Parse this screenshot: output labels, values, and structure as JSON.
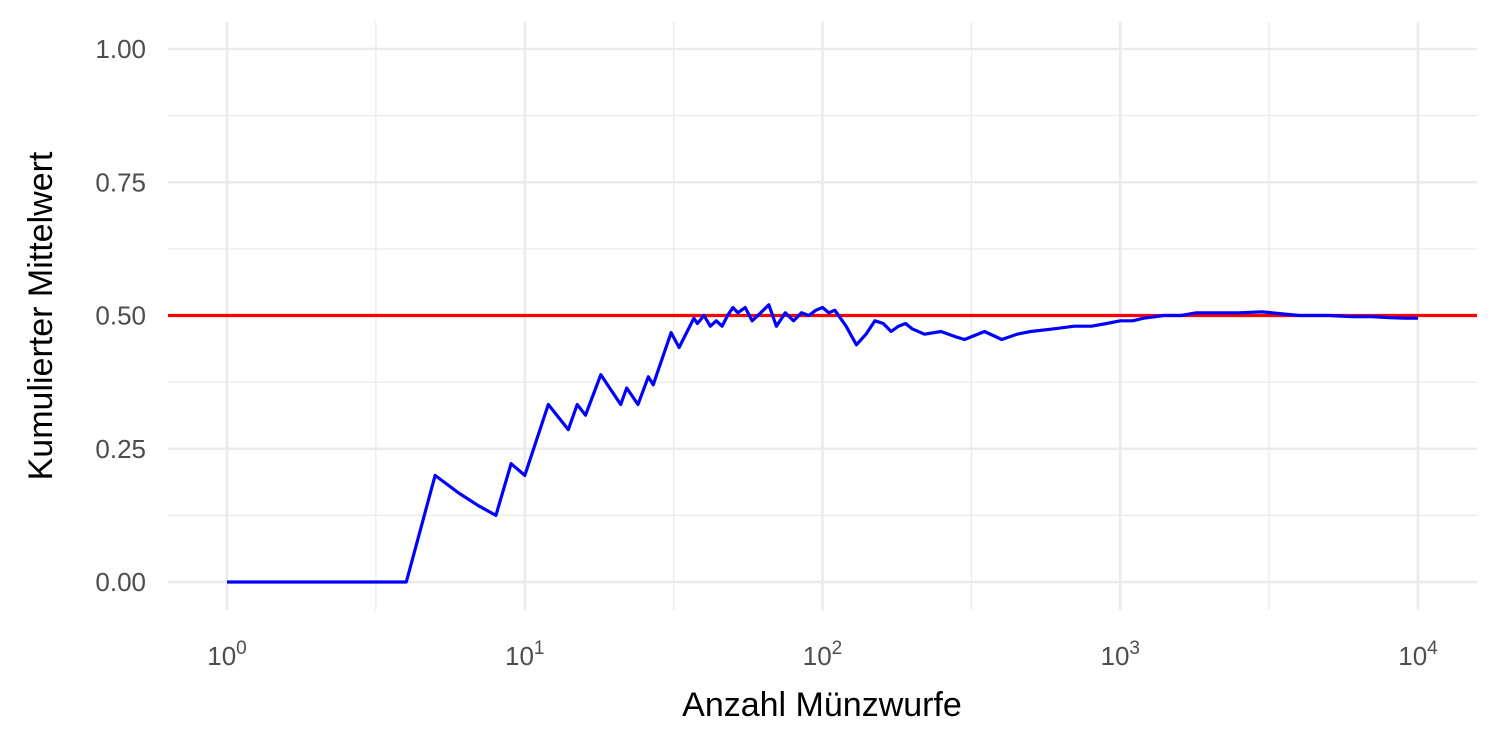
{
  "chart_data": {
    "type": "line",
    "xlabel": "Anzahl Münzwurfe",
    "ylabel": "Kumulierter Mittelwert",
    "x_scale": "log10",
    "xlim": [
      1,
      10000
    ],
    "ylim": [
      0,
      1
    ],
    "x_ticks": [
      {
        "value": 1,
        "base": "10",
        "exp": "0"
      },
      {
        "value": 10,
        "base": "10",
        "exp": "1"
      },
      {
        "value": 100,
        "base": "10",
        "exp": "2"
      },
      {
        "value": 1000,
        "base": "10",
        "exp": "3"
      },
      {
        "value": 10000,
        "base": "10",
        "exp": "4"
      }
    ],
    "y_ticks": [
      {
        "value": 0,
        "label": "0.00"
      },
      {
        "value": 0.25,
        "label": "0.25"
      },
      {
        "value": 0.5,
        "label": "0.50"
      },
      {
        "value": 0.75,
        "label": "0.75"
      },
      {
        "value": 1,
        "label": "1.00"
      }
    ],
    "grid": true,
    "reference_line": {
      "y": 0.5,
      "color": "#ff0000"
    },
    "series": [
      {
        "color": "#0000ff",
        "x": [
          1,
          2,
          3,
          4,
          5,
          6,
          7,
          8,
          9,
          10,
          12,
          14,
          15,
          16,
          18,
          21,
          22,
          24,
          26,
          27,
          31,
          33,
          37,
          38,
          40,
          42,
          44,
          46,
          48,
          50,
          52,
          55,
          58,
          62,
          66,
          70,
          75,
          80,
          85,
          90,
          95,
          100,
          105,
          110,
          120,
          130,
          140,
          150,
          160,
          170,
          180,
          190,
          200,
          220,
          250,
          280,
          300,
          350,
          400,
          450,
          500,
          600,
          700,
          800,
          900,
          1000,
          1100,
          1200,
          1400,
          1600,
          1800,
          2000,
          2500,
          3000,
          3500,
          4000,
          5000,
          6000,
          7000,
          8000,
          9000,
          10000
        ],
        "y": [
          0,
          0,
          0,
          0,
          0.2,
          0.167,
          0.143,
          0.125,
          0.222,
          0.2,
          0.333,
          0.286,
          0.333,
          0.313,
          0.389,
          0.333,
          0.364,
          0.333,
          0.385,
          0.37,
          0.468,
          0.44,
          0.495,
          0.485,
          0.5,
          0.48,
          0.49,
          0.48,
          0.5,
          0.515,
          0.505,
          0.515,
          0.49,
          0.505,
          0.52,
          0.48,
          0.505,
          0.49,
          0.505,
          0.5,
          0.51,
          0.515,
          0.505,
          0.51,
          0.48,
          0.445,
          0.465,
          0.49,
          0.485,
          0.47,
          0.48,
          0.485,
          0.475,
          0.465,
          0.47,
          0.46,
          0.455,
          0.47,
          0.455,
          0.465,
          0.47,
          0.475,
          0.48,
          0.48,
          0.485,
          0.49,
          0.49,
          0.495,
          0.5,
          0.5,
          0.505,
          0.505,
          0.505,
          0.507,
          0.503,
          0.5,
          0.5,
          0.498,
          0.498,
          0.496,
          0.495,
          0.495
        ]
      }
    ]
  }
}
